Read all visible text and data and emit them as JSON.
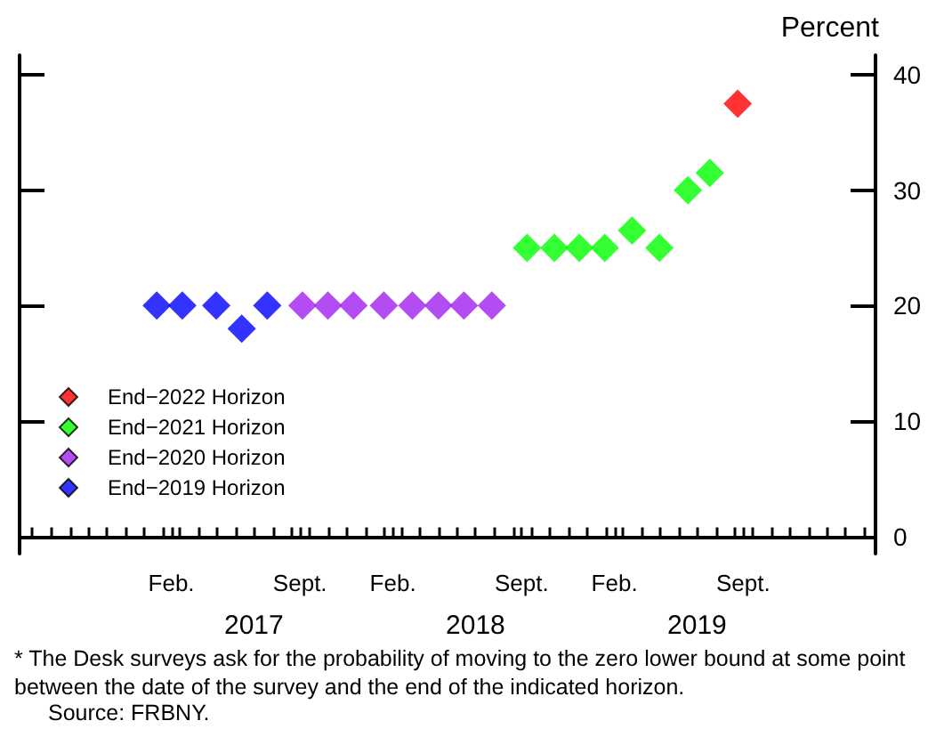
{
  "chart_data": {
    "type": "scatter",
    "ylabel": "Percent",
    "xlim": [
      "2016-06-10",
      "2020-04-20"
    ],
    "xticks": [
      {
        "value": "2016-07-01",
        "label": null
      },
      {
        "value": "2016-08-01",
        "label": null
      },
      {
        "value": "2016-09-01",
        "label": null
      },
      {
        "value": "2016-10-01",
        "label": null
      },
      {
        "value": "2016-11-01",
        "label": null
      },
      {
        "value": "2016-12-01",
        "label": null
      },
      {
        "value": "2017-01-01",
        "label": null
      },
      {
        "value": "2017-02-01",
        "label": null
      },
      {
        "value": "2017-02-15",
        "label": "Feb."
      },
      {
        "value": "2017-03-01",
        "label": null
      },
      {
        "value": "2017-04-01",
        "label": null
      },
      {
        "value": "2017-05-01",
        "label": null
      },
      {
        "value": "2017-06-01",
        "label": null
      },
      {
        "value": "2017-07-01",
        "label": null
      },
      {
        "value": "2017-08-01",
        "label": null
      },
      {
        "value": "2017-09-01",
        "label": null
      },
      {
        "value": "2017-09-15",
        "label": "Sept."
      },
      {
        "value": "2017-10-01",
        "label": null
      },
      {
        "value": "2017-11-01",
        "label": null
      },
      {
        "value": "2017-12-01",
        "label": null
      },
      {
        "value": "2018-01-01",
        "label": null
      },
      {
        "value": "2018-02-01",
        "label": null
      },
      {
        "value": "2018-02-15",
        "label": "Feb."
      },
      {
        "value": "2018-03-01",
        "label": null
      },
      {
        "value": "2018-04-01",
        "label": null
      },
      {
        "value": "2018-05-01",
        "label": null
      },
      {
        "value": "2018-06-01",
        "label": null
      },
      {
        "value": "2018-07-01",
        "label": null
      },
      {
        "value": "2018-08-01",
        "label": null
      },
      {
        "value": "2018-09-01",
        "label": null
      },
      {
        "value": "2018-09-15",
        "label": "Sept."
      },
      {
        "value": "2018-10-01",
        "label": null
      },
      {
        "value": "2018-11-01",
        "label": null
      },
      {
        "value": "2018-12-01",
        "label": null
      },
      {
        "value": "2019-01-01",
        "label": null
      },
      {
        "value": "2019-02-01",
        "label": null
      },
      {
        "value": "2019-02-15",
        "label": "Feb."
      },
      {
        "value": "2019-03-01",
        "label": null
      },
      {
        "value": "2019-04-01",
        "label": null
      },
      {
        "value": "2019-05-01",
        "label": null
      },
      {
        "value": "2019-06-01",
        "label": null
      },
      {
        "value": "2019-07-01",
        "label": null
      },
      {
        "value": "2019-08-01",
        "label": null
      },
      {
        "value": "2019-09-01",
        "label": null
      },
      {
        "value": "2019-09-15",
        "label": "Sept."
      },
      {
        "value": "2019-10-01",
        "label": null
      },
      {
        "value": "2019-11-01",
        "label": null
      },
      {
        "value": "2019-12-01",
        "label": null
      },
      {
        "value": "2020-01-01",
        "label": null
      },
      {
        "value": "2020-02-01",
        "label": null
      },
      {
        "value": "2020-03-01",
        "label": null
      },
      {
        "value": "2020-04-01",
        "label": null
      }
    ],
    "x2lim": [
      "2016-06-10",
      "2020-04-20"
    ],
    "x2ticks": [
      {
        "value": "2017-07-01",
        "label": "2017"
      },
      {
        "value": "2018-07-01",
        "label": "2018"
      },
      {
        "value": "2019-07-01",
        "label": "2019"
      }
    ],
    "ylim": [
      -1.5,
      41.7
    ],
    "yticks": [
      0,
      10,
      20,
      30,
      40
    ],
    "grid": false,
    "marker": "diamond",
    "legend": "bottom left",
    "series": [
      {
        "name": "End−2022 Horizon",
        "color": "#ff0000",
        "x": [
          "2019-09-06"
        ],
        "values": [
          37.5
        ]
      },
      {
        "name": "End−2021 Horizon",
        "color": "#00ff00",
        "x": [
          "2018-09-24",
          "2018-11-08",
          "2018-12-19",
          "2019-01-30",
          "2019-03-16",
          "2019-04-30",
          "2019-06-16",
          "2019-07-22"
        ],
        "values": [
          25,
          25,
          25,
          25,
          26.5,
          25,
          30,
          31.5
        ]
      },
      {
        "name": "End−2020 Horizon",
        "color": "#a020f0",
        "x": [
          "2017-09-19",
          "2017-10-31",
          "2017-12-12",
          "2018-01-31",
          "2018-03-19",
          "2018-05-01",
          "2018-06-12",
          "2018-07-28"
        ],
        "values": [
          20,
          20,
          20,
          20,
          20,
          20,
          20,
          20
        ]
      },
      {
        "name": "End−2019 Horizon",
        "color": "#0000ff",
        "x": [
          "2017-01-22",
          "2017-03-05",
          "2017-04-30",
          "2017-06-11",
          "2017-07-23"
        ],
        "values": [
          20,
          20,
          20,
          18,
          20
        ]
      }
    ],
    "annotations": [
      "* The Desk surveys ask for the probability of moving to the zero lower bound at some point between the date of the survey and the end of the indicated horizon.",
      "Source: FRBNY."
    ]
  }
}
